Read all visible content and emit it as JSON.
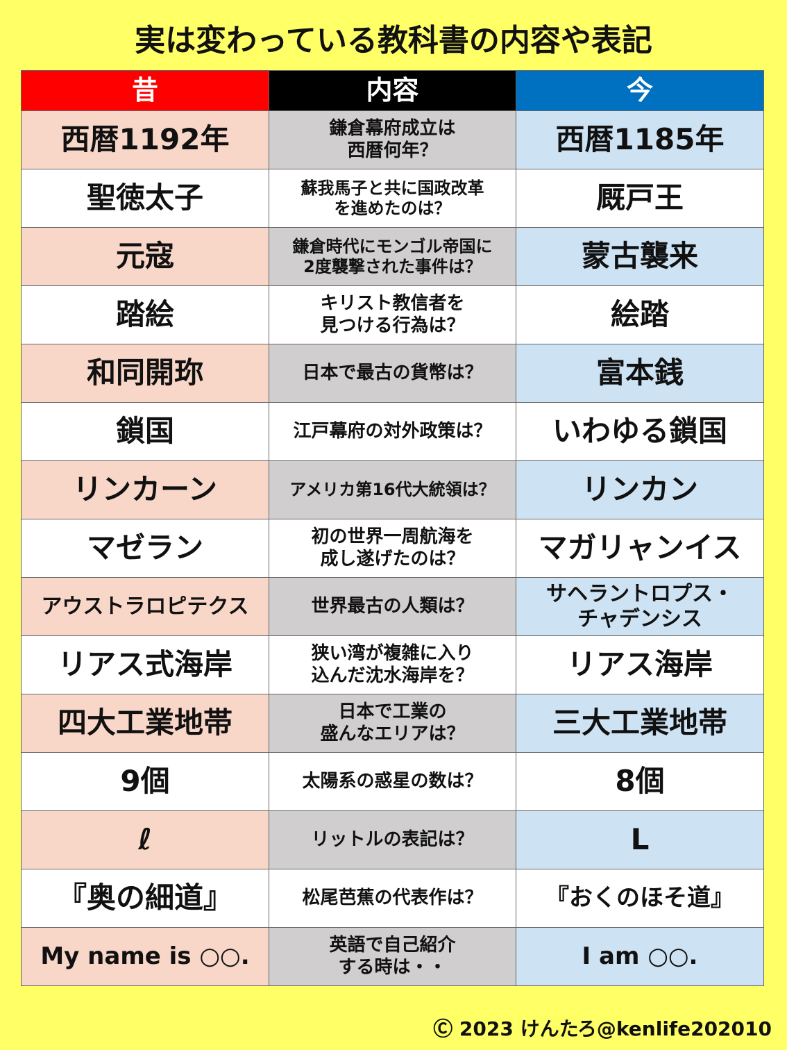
{
  "title": "実は変わっている教科書の内容や表記",
  "headers": {
    "past": "昔",
    "content": "内容",
    "now": "今"
  },
  "colors": {
    "past_header": "#FF0000",
    "content_header": "#000000",
    "now_header": "#0070C0",
    "background": "#FFFF66",
    "past_cell": "#F8D7C9",
    "content_cell": "#D0CECE",
    "now_cell": "#CDE2F3"
  },
  "rows": [
    {
      "past": "西暦1192年",
      "content": "鎌倉幕府成立は\n西暦何年？",
      "now": "西暦1185年"
    },
    {
      "past": "聖徳太子",
      "content": "蘇我馬子と共に国政改革\nを進めたのは？",
      "now": "厩戸王"
    },
    {
      "past": "元寇",
      "content": "鎌倉時代にモンゴル帝国に\n2度襲撃された事件は？",
      "now": "蒙古襲来"
    },
    {
      "past": "踏絵",
      "content": "キリスト教信者を\n見つける行為は？",
      "now": "絵踏"
    },
    {
      "past": "和同開珎",
      "content": "日本で最古の貨幣は？",
      "now": "富本銭"
    },
    {
      "past": "鎖国",
      "content": "江戸幕府の対外政策は？",
      "now": "いわゆる鎖国"
    },
    {
      "past": "リンカーン",
      "content": "アメリカ第16代大統領は？",
      "now": "リンカン"
    },
    {
      "past": "マゼラン",
      "content": "初の世界一周航海を\n成し遂げたのは？",
      "now": "マガリャンイス"
    },
    {
      "past": "アウストラロピテクス",
      "content": "世界最古の人類は？",
      "now": "サヘラントロプス・\nチャデンシス"
    },
    {
      "past": "リアス式海岸",
      "content": "狭い湾が複雑に入り\n込んだ沈水海岸を？",
      "now": "リアス海岸"
    },
    {
      "past": "四大工業地帯",
      "content": "日本で工業の\n盛んなエリアは？",
      "now": "三大工業地帯"
    },
    {
      "past": "9個",
      "content": "太陽系の惑星の数は？",
      "now": "8個"
    },
    {
      "past": "ℓ",
      "content": "リットルの表記は？",
      "now": "L"
    },
    {
      "past": "『奥の細道』",
      "content": "松尾芭蕉の代表作は？",
      "now": "『おくのほそ道』"
    },
    {
      "past": "My name is ○○.",
      "content": "英語で自己紹介\nする時は・・",
      "now": "I am ○○."
    }
  ],
  "credit": "Ⓒ 2023 けんたろ@kenlife202010"
}
